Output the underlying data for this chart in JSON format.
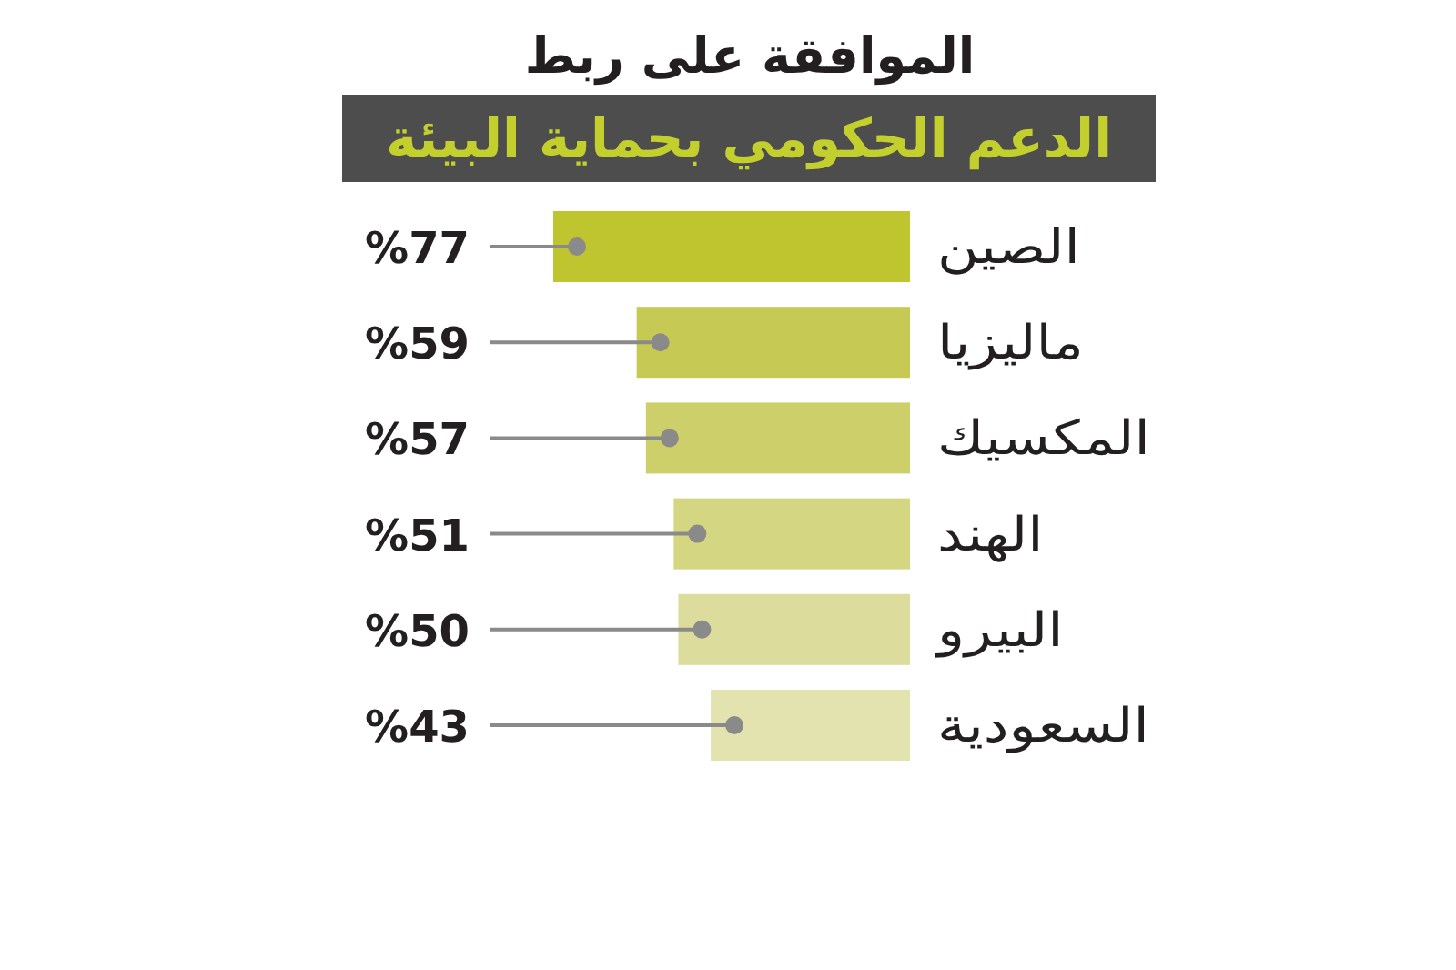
{
  "chart_data": {
    "type": "bar",
    "orientation": "horizontal",
    "title": "الموافقة على ربط",
    "subtitle": "الدعم الحكومي بحماية البيئة",
    "categories": [
      "الصين",
      "ماليزيا",
      "المكسيك",
      "الهند",
      "البيرو",
      "السعودية"
    ],
    "values": [
      77,
      59,
      57,
      51,
      50,
      43
    ],
    "colors": [
      "#bec52f",
      "#c6ca55",
      "#cccf6a",
      "#d5d682",
      "#dcdd9c",
      "#e3e3b0"
    ],
    "value_labels": [
      "%77",
      "%59",
      "%57",
      "%51",
      "%50",
      "%43"
    ],
    "tick_labels": "y"
  }
}
